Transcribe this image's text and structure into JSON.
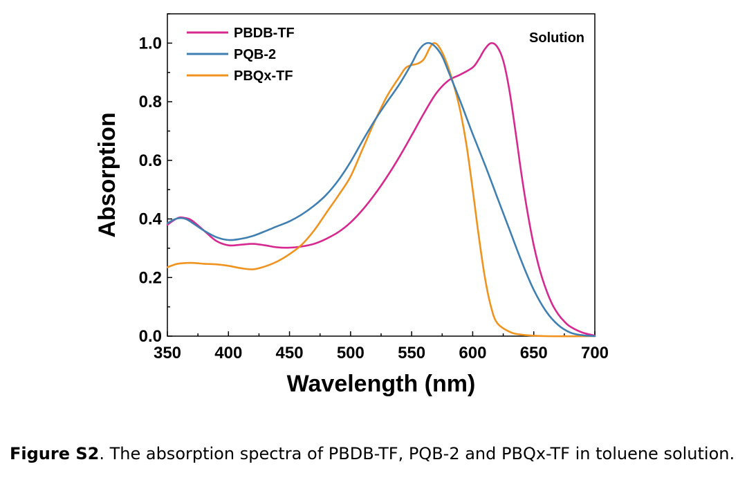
{
  "chart_data": {
    "type": "line",
    "title": "",
    "xlabel": "Wavelength (nm)",
    "ylabel": "Absorption",
    "xlim": [
      350,
      700
    ],
    "ylim": [
      0.0,
      1.1
    ],
    "x_ticks": [
      "350",
      "400",
      "450",
      "500",
      "550",
      "600",
      "650",
      "700"
    ],
    "y_ticks": [
      "0.0",
      "0.2",
      "0.4",
      "0.6",
      "0.8",
      "1.0"
    ],
    "annotation": "Solution",
    "legend_position": "top-left",
    "series": [
      {
        "name": "PBDB-TF",
        "color": "#d6288f",
        "points": [
          [
            350,
            0.38
          ],
          [
            355,
            0.395
          ],
          [
            360,
            0.405
          ],
          [
            365,
            0.403
          ],
          [
            370,
            0.395
          ],
          [
            380,
            0.36
          ],
          [
            390,
            0.325
          ],
          [
            400,
            0.31
          ],
          [
            410,
            0.312
          ],
          [
            420,
            0.315
          ],
          [
            430,
            0.31
          ],
          [
            440,
            0.303
          ],
          [
            450,
            0.302
          ],
          [
            460,
            0.306
          ],
          [
            470,
            0.315
          ],
          [
            480,
            0.332
          ],
          [
            490,
            0.355
          ],
          [
            500,
            0.388
          ],
          [
            510,
            0.432
          ],
          [
            520,
            0.485
          ],
          [
            530,
            0.545
          ],
          [
            540,
            0.612
          ],
          [
            550,
            0.685
          ],
          [
            560,
            0.76
          ],
          [
            570,
            0.828
          ],
          [
            580,
            0.872
          ],
          [
            590,
            0.893
          ],
          [
            600,
            0.917
          ],
          [
            605,
            0.945
          ],
          [
            610,
            0.98
          ],
          [
            615,
            1.0
          ],
          [
            620,
            0.988
          ],
          [
            625,
            0.94
          ],
          [
            630,
            0.84
          ],
          [
            635,
            0.7
          ],
          [
            640,
            0.55
          ],
          [
            645,
            0.42
          ],
          [
            650,
            0.31
          ],
          [
            655,
            0.225
          ],
          [
            660,
            0.16
          ],
          [
            665,
            0.11
          ],
          [
            670,
            0.075
          ],
          [
            675,
            0.05
          ],
          [
            680,
            0.032
          ],
          [
            690,
            0.012
          ],
          [
            700,
            0.002
          ]
        ]
      },
      {
        "name": "PQB-2",
        "color": "#3f7fb1",
        "points": [
          [
            350,
            0.385
          ],
          [
            355,
            0.397
          ],
          [
            360,
            0.403
          ],
          [
            365,
            0.4
          ],
          [
            370,
            0.388
          ],
          [
            380,
            0.36
          ],
          [
            390,
            0.338
          ],
          [
            400,
            0.328
          ],
          [
            410,
            0.332
          ],
          [
            420,
            0.342
          ],
          [
            430,
            0.358
          ],
          [
            440,
            0.375
          ],
          [
            450,
            0.392
          ],
          [
            460,
            0.415
          ],
          [
            470,
            0.445
          ],
          [
            480,
            0.482
          ],
          [
            490,
            0.532
          ],
          [
            500,
            0.595
          ],
          [
            510,
            0.668
          ],
          [
            520,
            0.738
          ],
          [
            530,
            0.8
          ],
          [
            540,
            0.86
          ],
          [
            550,
            0.93
          ],
          [
            555,
            0.97
          ],
          [
            560,
            0.995
          ],
          [
            565,
            1.0
          ],
          [
            570,
            0.985
          ],
          [
            575,
            0.955
          ],
          [
            580,
            0.905
          ],
          [
            590,
            0.8
          ],
          [
            600,
            0.69
          ],
          [
            610,
            0.585
          ],
          [
            620,
            0.475
          ],
          [
            630,
            0.365
          ],
          [
            640,
            0.255
          ],
          [
            650,
            0.158
          ],
          [
            660,
            0.085
          ],
          [
            670,
            0.038
          ],
          [
            680,
            0.012
          ],
          [
            690,
            0.003
          ],
          [
            700,
            0.0
          ]
        ]
      },
      {
        "name": "PBQx-TF",
        "color": "#f0931e",
        "points": [
          [
            350,
            0.235
          ],
          [
            355,
            0.243
          ],
          [
            360,
            0.248
          ],
          [
            370,
            0.25
          ],
          [
            380,
            0.247
          ],
          [
            390,
            0.245
          ],
          [
            400,
            0.24
          ],
          [
            410,
            0.232
          ],
          [
            420,
            0.228
          ],
          [
            430,
            0.238
          ],
          [
            440,
            0.255
          ],
          [
            450,
            0.28
          ],
          [
            460,
            0.312
          ],
          [
            470,
            0.36
          ],
          [
            480,
            0.42
          ],
          [
            490,
            0.48
          ],
          [
            500,
            0.545
          ],
          [
            510,
            0.64
          ],
          [
            520,
            0.735
          ],
          [
            530,
            0.82
          ],
          [
            540,
            0.885
          ],
          [
            545,
            0.915
          ],
          [
            550,
            0.925
          ],
          [
            555,
            0.93
          ],
          [
            560,
            0.945
          ],
          [
            565,
            0.985
          ],
          [
            568,
            1.0
          ],
          [
            572,
            0.99
          ],
          [
            578,
            0.94
          ],
          [
            585,
            0.85
          ],
          [
            590,
            0.765
          ],
          [
            595,
            0.65
          ],
          [
            600,
            0.5
          ],
          [
            605,
            0.34
          ],
          [
            610,
            0.2
          ],
          [
            615,
            0.1
          ],
          [
            620,
            0.045
          ],
          [
            630,
            0.015
          ],
          [
            640,
            0.005
          ],
          [
            660,
            0.0
          ],
          [
            700,
            0.0
          ]
        ]
      }
    ]
  },
  "caption": {
    "label": "Figure S2",
    "text": ". The absorption spectra of PBDB-TF, PQB-2 and PBQx-TF in toluene solution."
  }
}
